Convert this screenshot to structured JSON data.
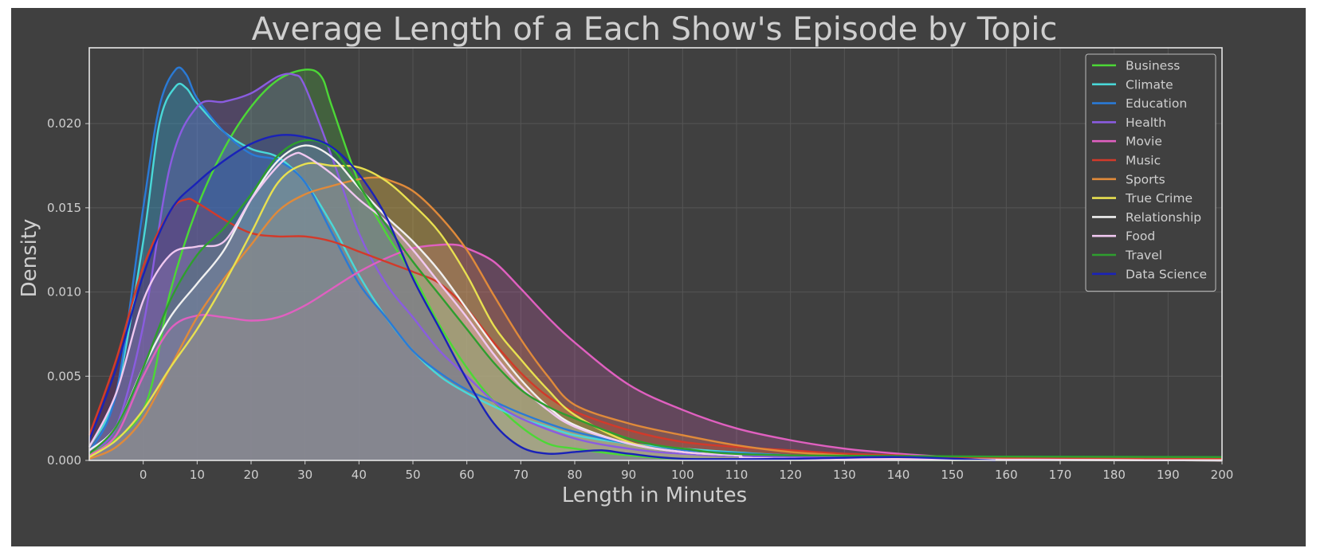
{
  "chart_data": {
    "type": "area",
    "title": "Average Length of a Each Show's Episode by Topic",
    "xlabel": "Length in Minutes",
    "ylabel": "Density",
    "xlim": [
      -10,
      200
    ],
    "ylim": [
      0,
      0.0245
    ],
    "x_ticks": [
      0,
      10,
      20,
      30,
      40,
      50,
      60,
      70,
      80,
      90,
      100,
      110,
      120,
      130,
      140,
      150,
      160,
      170,
      180,
      190,
      200
    ],
    "y_ticks": [
      0.0,
      0.005,
      0.01,
      0.015,
      0.02
    ],
    "y_tick_labels": [
      "0.000",
      "0.005",
      "0.010",
      "0.015",
      "0.020"
    ],
    "grid": true,
    "legend": "top-right",
    "background": "#404040",
    "series": [
      {
        "name": "Business",
        "color": "#4cd836",
        "x": [
          -10,
          0,
          5,
          10,
          15,
          20,
          25,
          30,
          33,
          35,
          40,
          45,
          50,
          55,
          60,
          65,
          70,
          75,
          80,
          90,
          100,
          120,
          150,
          200
        ],
        "y": [
          0.0003,
          0.003,
          0.01,
          0.015,
          0.0185,
          0.021,
          0.0226,
          0.0232,
          0.0228,
          0.021,
          0.0165,
          0.0135,
          0.011,
          0.008,
          0.0055,
          0.0035,
          0.002,
          0.001,
          0.0007,
          0.0003,
          0.0001,
          5e-05,
          2e-05,
          0.0001
        ]
      },
      {
        "name": "Climate",
        "color": "#49d8d8",
        "x": [
          -10,
          -5,
          0,
          3,
          6,
          8,
          10,
          15,
          20,
          25,
          30,
          35,
          40,
          45,
          50,
          55,
          60,
          65,
          70,
          75,
          80,
          90,
          100,
          120,
          140,
          200
        ],
        "y": [
          0.0008,
          0.004,
          0.013,
          0.02,
          0.0222,
          0.0221,
          0.0212,
          0.0195,
          0.0185,
          0.018,
          0.0165,
          0.014,
          0.011,
          0.0085,
          0.0065,
          0.005,
          0.004,
          0.0032,
          0.0025,
          0.002,
          0.0015,
          0.001,
          0.0007,
          0.0003,
          0.0001,
          0.0
        ]
      },
      {
        "name": "Education",
        "color": "#2a7ad6",
        "x": [
          -10,
          -5,
          0,
          3,
          6,
          8,
          10,
          15,
          20,
          25,
          30,
          35,
          40,
          45,
          50,
          55,
          60,
          65,
          70,
          75,
          80,
          90,
          100,
          120,
          140,
          200
        ],
        "y": [
          0.0005,
          0.004,
          0.015,
          0.021,
          0.0232,
          0.0229,
          0.0215,
          0.0195,
          0.0182,
          0.0178,
          0.0165,
          0.0135,
          0.0105,
          0.0085,
          0.0065,
          0.0052,
          0.0042,
          0.0035,
          0.0028,
          0.0022,
          0.0017,
          0.001,
          0.0006,
          0.0003,
          0.0001,
          0.0
        ]
      },
      {
        "name": "Health",
        "color": "#8a5ce0",
        "x": [
          -10,
          -5,
          0,
          5,
          10,
          15,
          20,
          25,
          28,
          30,
          35,
          40,
          45,
          50,
          55,
          60,
          65,
          70,
          80,
          90,
          100,
          120,
          200
        ],
        "y": [
          0.0005,
          0.002,
          0.008,
          0.0175,
          0.021,
          0.0213,
          0.0218,
          0.0228,
          0.0229,
          0.0222,
          0.018,
          0.0135,
          0.0105,
          0.0085,
          0.0065,
          0.005,
          0.0035,
          0.0025,
          0.0013,
          0.0007,
          0.0004,
          0.0002,
          0.0
        ]
      },
      {
        "name": "Movie",
        "color": "#e060c0",
        "x": [
          -10,
          -5,
          0,
          5,
          10,
          15,
          20,
          25,
          30,
          35,
          40,
          45,
          50,
          55,
          58,
          60,
          65,
          70,
          75,
          80,
          90,
          100,
          110,
          120,
          130,
          140,
          150,
          160,
          200
        ],
        "y": [
          0.0003,
          0.0015,
          0.005,
          0.0078,
          0.0086,
          0.0085,
          0.0083,
          0.0085,
          0.0092,
          0.0102,
          0.0112,
          0.012,
          0.0126,
          0.0128,
          0.0128,
          0.0126,
          0.0118,
          0.0102,
          0.0085,
          0.007,
          0.0045,
          0.003,
          0.0019,
          0.0012,
          0.0007,
          0.0004,
          0.0002,
          0.0001,
          5e-05
        ]
      },
      {
        "name": "Music",
        "color": "#d23a2a",
        "x": [
          -10,
          -5,
          0,
          5,
          8,
          10,
          15,
          20,
          25,
          30,
          35,
          40,
          45,
          50,
          55,
          60,
          65,
          70,
          75,
          80,
          90,
          100,
          110,
          120,
          130,
          140,
          150,
          200
        ],
        "y": [
          0.0015,
          0.006,
          0.0115,
          0.0148,
          0.0155,
          0.0153,
          0.0143,
          0.0135,
          0.0133,
          0.0133,
          0.013,
          0.0124,
          0.0118,
          0.0112,
          0.0105,
          0.009,
          0.007,
          0.0052,
          0.0038,
          0.0029,
          0.0018,
          0.0011,
          0.0008,
          0.0006,
          0.0004,
          0.0003,
          0.0002,
          0.0001
        ]
      },
      {
        "name": "Sports",
        "color": "#e08a3a",
        "x": [
          -10,
          -5,
          0,
          5,
          10,
          15,
          20,
          25,
          30,
          35,
          40,
          43,
          45,
          50,
          55,
          60,
          65,
          70,
          75,
          80,
          90,
          100,
          110,
          120,
          130,
          140,
          200
        ],
        "y": [
          0.0001,
          0.0008,
          0.0025,
          0.0055,
          0.0085,
          0.0108,
          0.0128,
          0.0148,
          0.0158,
          0.0163,
          0.0167,
          0.0168,
          0.0167,
          0.016,
          0.0145,
          0.0125,
          0.0098,
          0.0072,
          0.005,
          0.0033,
          0.0022,
          0.0015,
          0.0009,
          0.0005,
          0.0003,
          0.0001,
          0.0
        ]
      },
      {
        "name": "True Crime",
        "color": "#e8e050",
        "x": [
          -10,
          -5,
          0,
          5,
          10,
          15,
          20,
          25,
          30,
          35,
          40,
          45,
          50,
          55,
          60,
          65,
          70,
          75,
          80,
          90,
          100,
          110,
          120,
          200
        ],
        "y": [
          0.0002,
          0.0012,
          0.003,
          0.0055,
          0.0078,
          0.0105,
          0.0135,
          0.0165,
          0.0176,
          0.0175,
          0.0174,
          0.0166,
          0.0152,
          0.0135,
          0.011,
          0.008,
          0.006,
          0.0042,
          0.0027,
          0.0011,
          0.0005,
          0.0003,
          0.0001,
          0.0
        ]
      },
      {
        "name": "Relationship",
        "color": "#f0f0f0",
        "x": [
          -10,
          -5,
          0,
          5,
          10,
          15,
          20,
          25,
          30,
          35,
          40,
          45,
          50,
          55,
          60,
          65,
          70,
          75,
          80,
          90,
          100,
          110,
          120,
          200
        ],
        "y": [
          0.0006,
          0.002,
          0.0055,
          0.0085,
          0.0105,
          0.0125,
          0.0155,
          0.0178,
          0.0187,
          0.018,
          0.0162,
          0.0145,
          0.013,
          0.0112,
          0.009,
          0.0068,
          0.0048,
          0.0032,
          0.0021,
          0.001,
          0.0005,
          0.0003,
          0.0001,
          0.0
        ]
      },
      {
        "name": "Food",
        "color": "#f0c8f0",
        "x": [
          -10,
          -5,
          0,
          5,
          10,
          15,
          20,
          25,
          28,
          30,
          35,
          40,
          45,
          50,
          55,
          60,
          65,
          70,
          75,
          80,
          90,
          100,
          110,
          120,
          200
        ],
        "y": [
          0.0008,
          0.004,
          0.0095,
          0.0122,
          0.0127,
          0.013,
          0.0155,
          0.0175,
          0.0182,
          0.0181,
          0.017,
          0.0155,
          0.0142,
          0.0125,
          0.0105,
          0.0085,
          0.0063,
          0.0044,
          0.003,
          0.002,
          0.001,
          0.0005,
          0.0003,
          0.0001,
          0.0
        ]
      },
      {
        "name": "Travel",
        "color": "#2e9e2e",
        "x": [
          -10,
          -5,
          0,
          5,
          10,
          15,
          20,
          25,
          30,
          35,
          40,
          45,
          50,
          55,
          60,
          65,
          70,
          75,
          80,
          90,
          100,
          120,
          200
        ],
        "y": [
          0.0004,
          0.002,
          0.0055,
          0.0095,
          0.0122,
          0.0138,
          0.0158,
          0.0181,
          0.019,
          0.0185,
          0.0163,
          0.014,
          0.0118,
          0.0098,
          0.0078,
          0.0058,
          0.0042,
          0.0032,
          0.0025,
          0.0013,
          0.0007,
          0.0003,
          0.0002
        ]
      },
      {
        "name": "Data Science",
        "color": "#1a22b8",
        "x": [
          -10,
          -5,
          0,
          5,
          10,
          15,
          20,
          25,
          30,
          35,
          40,
          45,
          50,
          55,
          60,
          65,
          70,
          75,
          80,
          85,
          90,
          100,
          120,
          140,
          158
        ],
        "y": [
          0.0012,
          0.0055,
          0.011,
          0.0148,
          0.0165,
          0.0178,
          0.0188,
          0.0193,
          0.0192,
          0.0186,
          0.017,
          0.0145,
          0.0108,
          0.0078,
          0.0048,
          0.0022,
          0.0008,
          0.0004,
          0.0005,
          0.0006,
          0.0004,
          0.0001,
          0.0001,
          0.0002,
          0.0
        ]
      }
    ]
  }
}
